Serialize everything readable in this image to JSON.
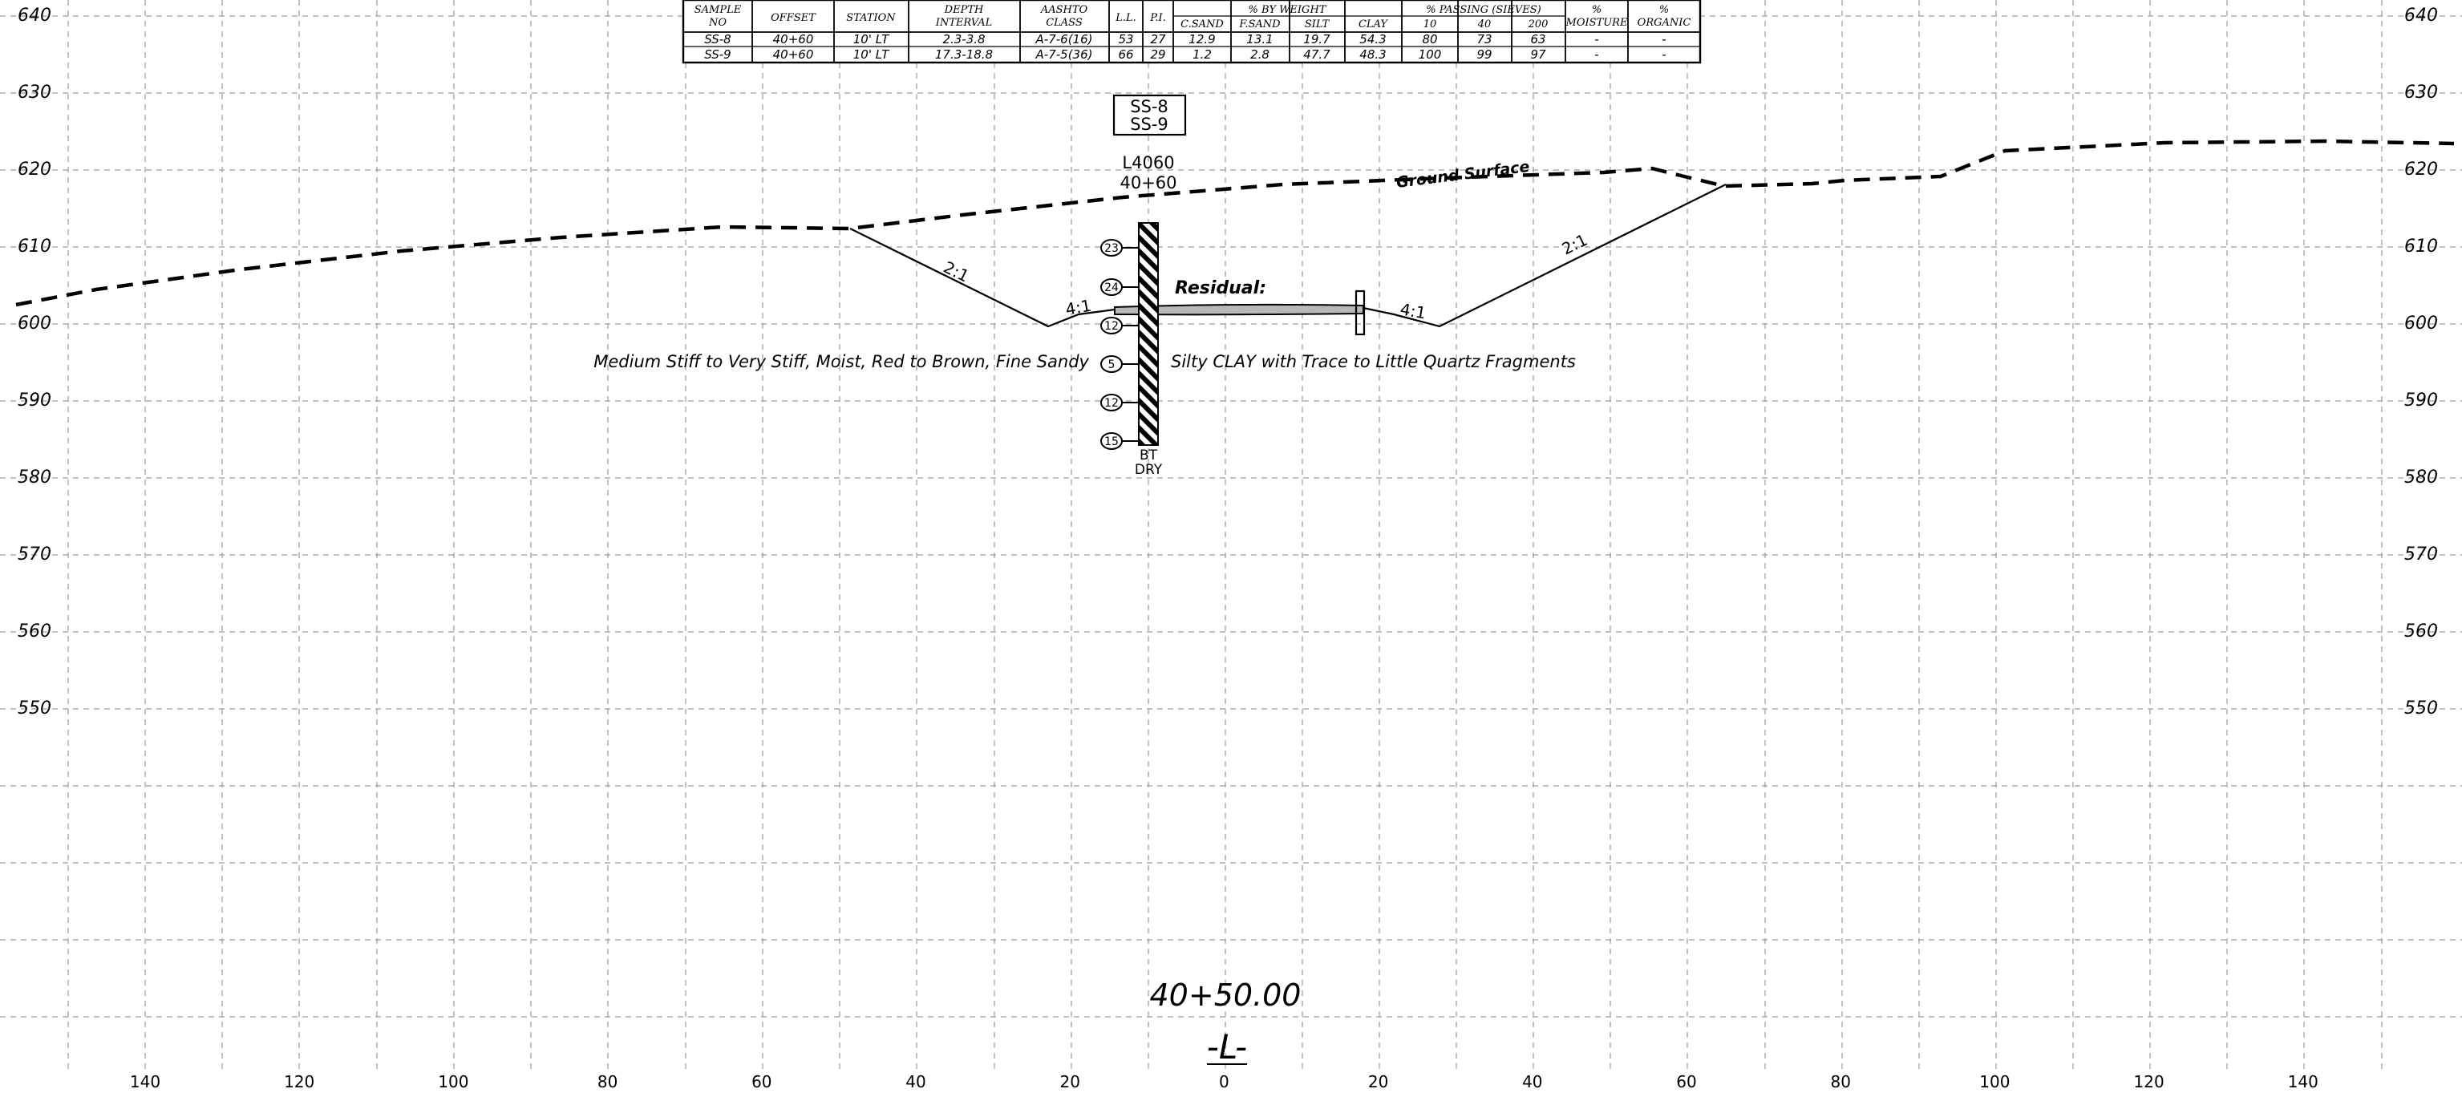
{
  "section": {
    "station_title": "40+50.00",
    "alignment_label": "-L-",
    "elevation_labels": [
      "640",
      "630",
      "620",
      "610",
      "600",
      "590",
      "580",
      "570",
      "560",
      "550"
    ],
    "offset_labels": [
      "140",
      "120",
      "100",
      "80",
      "60",
      "40",
      "20",
      "0",
      "20",
      "40",
      "60",
      "80",
      "100",
      "120",
      "140"
    ]
  },
  "lab_table": {
    "headers": {
      "sample_no": "SAMPLE NO",
      "offset": "OFFSET",
      "station": "STATION",
      "depth_interval": "DEPTH INTERVAL",
      "aashto_class": "AASHTO CLASS",
      "ll": "L.L.",
      "pi": "P.I.",
      "by_weight": "% BY WEIGHT",
      "c_sand": "C.SAND",
      "f_sand": "F.SAND",
      "silt": "SILT",
      "clay": "CLAY",
      "passing": "% PASSING (SIEVES)",
      "sieve_10": "10",
      "sieve_40": "40",
      "sieve_200": "200",
      "moisture": "% MOISTURE",
      "organic": "% ORGANIC"
    },
    "rows": [
      [
        "SS-8",
        "40+60",
        "10' LT",
        "2.3-3.8",
        "A-7-6(16)",
        "53",
        "27",
        "12.9",
        "13.1",
        "19.7",
        "54.3",
        "80",
        "73",
        "63",
        "-",
        "-"
      ],
      [
        "SS-9",
        "40+60",
        "10' LT",
        "17.3-18.8",
        "A-7-5(36)",
        "66",
        "29",
        "1.2",
        "2.8",
        "47.7",
        "48.3",
        "100",
        "99",
        "97",
        "-",
        "-"
      ]
    ]
  },
  "boring": {
    "sample_box": [
      "SS-8",
      "SS-9"
    ],
    "boring_id": "L4060",
    "boring_station": "40+60",
    "blow_counts": [
      "23",
      "24",
      "12",
      "5",
      "12",
      "15"
    ],
    "bottom_label_1": "BT",
    "bottom_label_2": "DRY"
  },
  "annotations": {
    "ground_surface": "Ground Surface",
    "residual": "Residual:",
    "desc_left": "Medium Stiff to Very Stiff, Moist, Red to Brown, Fine Sandy",
    "desc_right": "Silty CLAY with Trace to Little Quartz Fragments",
    "slope_left_outer": "2:1",
    "slope_left_inner": "4:1",
    "slope_right_inner": "4:1",
    "slope_right_outer": "2:1"
  }
}
